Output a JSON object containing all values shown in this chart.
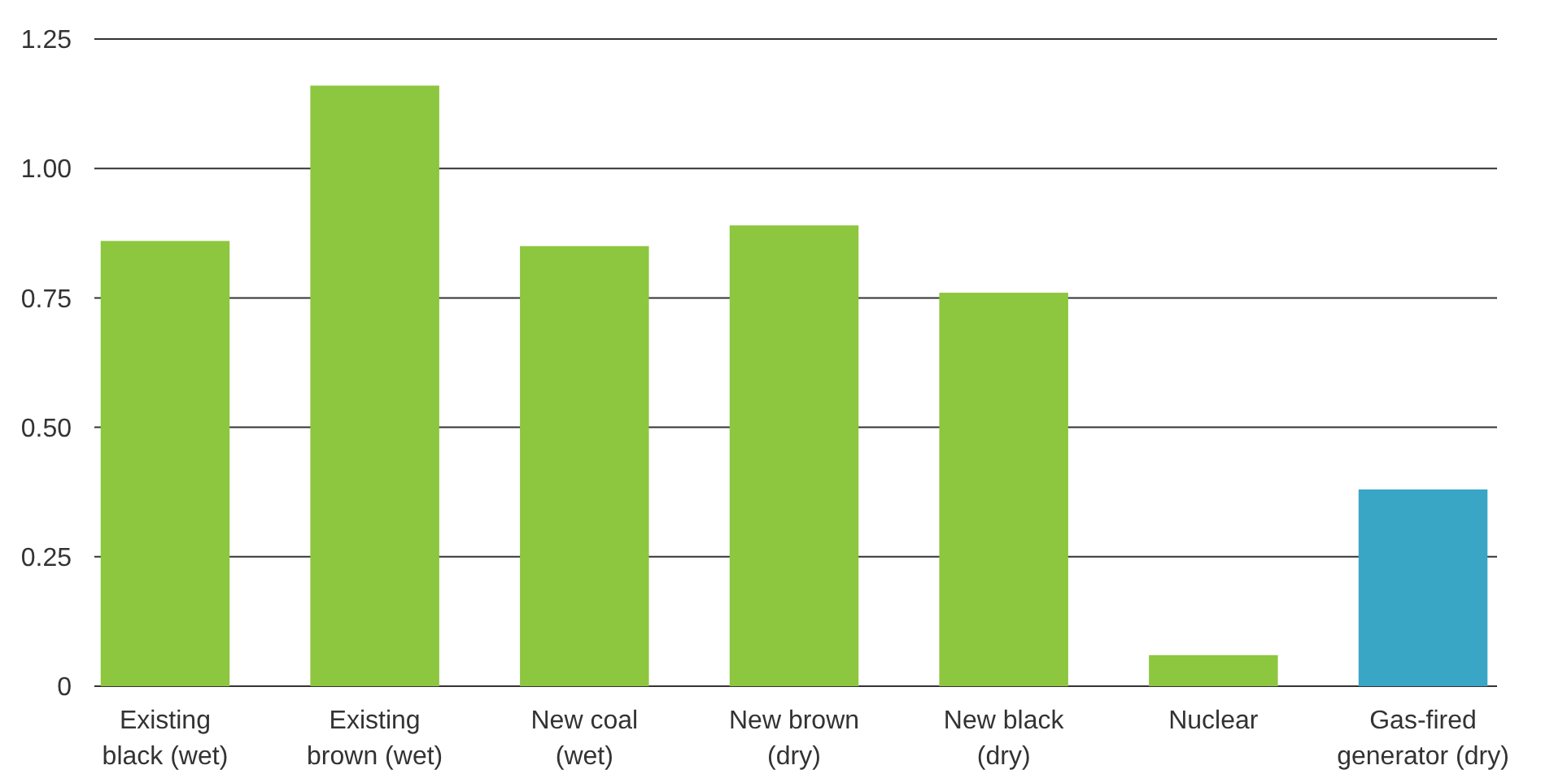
{
  "chart_data": {
    "type": "bar",
    "categories": [
      "Existing\nblack (wet)",
      "Existing\nbrown (wet)",
      "New coal\n(wet)",
      "New brown\n(dry)",
      "New black\n(dry)",
      "Nuclear",
      "Gas-fired\ngenerator (dry)"
    ],
    "values": [
      0.86,
      1.16,
      0.85,
      0.89,
      0.76,
      0.06,
      0.38
    ],
    "colors": [
      "#8dc63f",
      "#8dc63f",
      "#8dc63f",
      "#8dc63f",
      "#8dc63f",
      "#8dc63f",
      "#3aa6c6"
    ],
    "ylim": [
      0,
      1.25
    ],
    "yticks": [
      0,
      0.25,
      {
        "value": 0.5,
        "label": "0.50"
      },
      0.75,
      {
        "value": 1,
        "label": "1.00"
      },
      1.25
    ],
    "grid": "y"
  }
}
